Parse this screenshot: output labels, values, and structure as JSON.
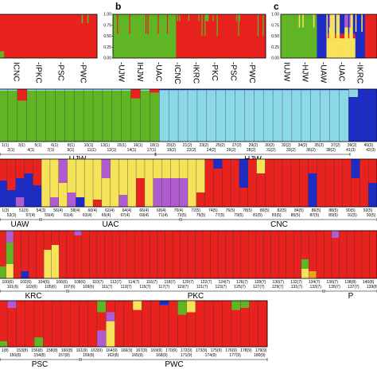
{
  "colors": {
    "red": "#e8231f",
    "green": "#61b524",
    "cyan": "#8bd8e6",
    "yellow": "#f6e35a",
    "blue": "#1d2cc4",
    "purple": "#b05cd0",
    "orange": "#f0a21a",
    "grey": "#a0a0a0"
  },
  "chart_data": [
    {
      "type": "bar",
      "panel": "a",
      "stacked": true,
      "ylim": [
        0,
        1
      ],
      "populations": [
        "CNC",
        "PKC",
        "PSC",
        "PWC"
      ],
      "pop_prefix": [
        "I",
        "-I",
        "-",
        "-"
      ]
    },
    {
      "type": "bar",
      "panel": "b",
      "stacked": true,
      "ylim": [
        0,
        1
      ],
      "tick_labels": [
        "0.00",
        "0.25",
        "0.50",
        "0.75",
        "1.00"
      ],
      "populations": [
        "UJW",
        "HJW",
        "UAC",
        "CNC",
        "KRC",
        "PKC",
        "PSC",
        "PWC"
      ],
      "pop_prefix": [
        "-",
        "I",
        "-",
        "-I",
        "-I",
        "-",
        "-",
        "-"
      ]
    },
    {
      "type": "bar",
      "panel": "c",
      "stacked": true,
      "ylim": [
        0,
        1
      ],
      "tick_labels": [
        "0.00",
        "0.25",
        "0.50",
        "0.75",
        "1.00"
      ],
      "populations": [
        "UJW",
        "HJW",
        "UAW",
        "UAC",
        "KRC"
      ],
      "pop_prefix": [
        "I",
        "-",
        "-",
        "-",
        "-I"
      ]
    },
    {
      "type": "bar",
      "panel": "row1",
      "stacked": true,
      "ylim": [
        0,
        1
      ],
      "populations": [
        "UJW",
        "HJW"
      ],
      "individuals": [
        "2(1)",
        "4(1)",
        "7(1)",
        "9(1)",
        "11(1)",
        "12(1)",
        "14(1)",
        "17(1)",
        "19(2)",
        "22(2)",
        "24(2)",
        "26(2)",
        "28(2)",
        "31(2)",
        "33(2)",
        "36(2)",
        "38(2)",
        "41(3)",
        "42(3)"
      ],
      "ind_top": [
        "1(1)",
        "3(1)",
        "5(1)",
        "6(1)",
        "8(1)",
        "10(1)",
        "13(1)",
        "15(1)",
        "16(1)",
        "18(1)",
        "20(2)",
        "21(2)",
        "23(2)",
        "25(2)",
        "27(2)",
        "29(2)",
        "30(2)",
        "32(2)",
        "34(2)",
        "35(2)",
        "37(2)",
        "39(2)",
        "40(3)"
      ]
    },
    {
      "type": "bar",
      "panel": "row2",
      "stacked": true,
      "ylim": [
        0,
        1
      ],
      "populations": [
        "UAW",
        "UAC",
        "CNC"
      ],
      "individuals": [
        "53(3)",
        "57(4)",
        "59(4)",
        "61(4)",
        "63(4)",
        "65(4)",
        "67(4)",
        "69(4)",
        "71(4)",
        "73(5)",
        "75(5)",
        "77(5)",
        "79(5)",
        "81(5)",
        "83(5)",
        "85(5)",
        "87(5)",
        "89(5)",
        "91(5)",
        "93(5)"
      ],
      "ind_top": [
        "1(3)",
        "51(3)",
        "54(3)",
        "56(4)",
        "58(4)",
        "60(4)",
        "62(4)",
        "64(4)",
        "66(4)",
        "68(4)",
        "70(4)",
        "72(5)",
        "74(5)",
        "76(5)",
        "78(5)",
        "80(5)",
        "82(5)",
        "84(5)",
        "86(5)",
        "88(5)",
        "90(5)",
        "92(5)"
      ]
    },
    {
      "type": "bar",
      "panel": "row3",
      "stacked": true,
      "ylim": [
        0,
        1
      ],
      "populations": [
        "KRC",
        "PKC",
        "P"
      ],
      "individuals": [
        "101(6)",
        "103(6)",
        "105(6)",
        "107(6)",
        "109(6)",
        "111(7)",
        "113(7)",
        "115(7)",
        "117(7)",
        "119(7)",
        "121(7)",
        "123(7)",
        "125(7)",
        "127(7)",
        "129(7)",
        "131(7)",
        "133(7)",
        "135(7)",
        "137(7)",
        "139(8)"
      ],
      "ind_top": [
        "100(6)",
        "102(6)",
        "104(6)",
        "106(6)",
        "108(6)",
        "110(7)",
        "112(7)",
        "114(7)",
        "116(7)",
        "118(7)",
        "120(7)",
        "122(7)",
        "124(7)",
        "126(7)",
        "128(7)",
        "130(7)",
        "132(7)",
        "134(7)",
        "136(7)",
        "138(8)",
        "140(8)"
      ]
    },
    {
      "type": "bar",
      "panel": "row4",
      "stacked": true,
      "ylim": [
        0,
        1
      ],
      "populations": [
        "PSC",
        "PWC"
      ],
      "individuals": [
        "150(8)",
        "154(8)",
        "157(8)",
        "159(8)",
        "162(8)",
        "165(9)",
        "168(9)",
        "171(9)",
        "174(9)",
        "177(9)",
        "180(9)"
      ],
      "ind_top": [
        "1(8)",
        "153(8)",
        "156(8)",
        "158(8)",
        "160(8)",
        "161(9)",
        "163(9)",
        "164(9)",
        "166(9)",
        "167(9)",
        "169(9)",
        "170(9)",
        "172(9)",
        "173(9)",
        "175(9)",
        "176(9)",
        "178(9)",
        "179(9)"
      ]
    }
  ]
}
